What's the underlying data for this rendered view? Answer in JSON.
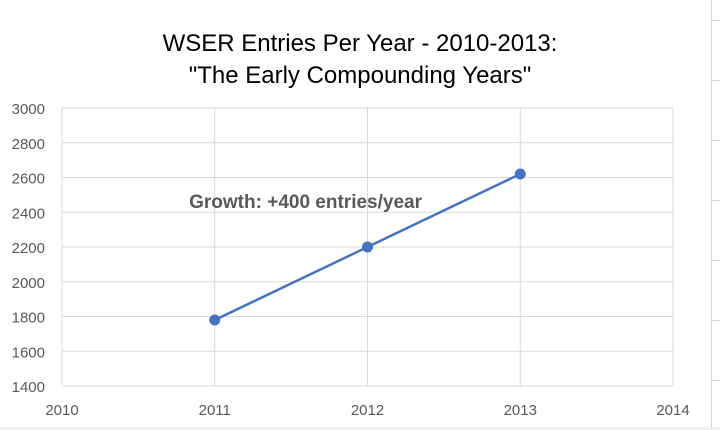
{
  "chart_data": {
    "type": "scatter",
    "title_line_1": "WSER Entries Per Year - 2010-2013:",
    "title_line_2": "\"The Early Compounding Years\"",
    "xlabel": "",
    "ylabel": "",
    "x_ticks": [
      "2010",
      "2011",
      "2012",
      "2013",
      "2014"
    ],
    "y_ticks": [
      "1400",
      "1600",
      "1800",
      "2000",
      "2200",
      "2400",
      "2600",
      "2800",
      "3000"
    ],
    "xlim": [
      2010,
      2014
    ],
    "ylim": [
      1400,
      3000
    ],
    "grid": true,
    "series": [
      {
        "x": [
          2011,
          2012,
          2013
        ],
        "values": [
          1780,
          2200,
          2620
        ],
        "color": "#4472C4",
        "connected": true,
        "marker": "circle"
      }
    ],
    "annotation": {
      "text": "Growth: +400 entries/year",
      "x": 2011.5,
      "y": 2460,
      "color": "#595959"
    }
  }
}
